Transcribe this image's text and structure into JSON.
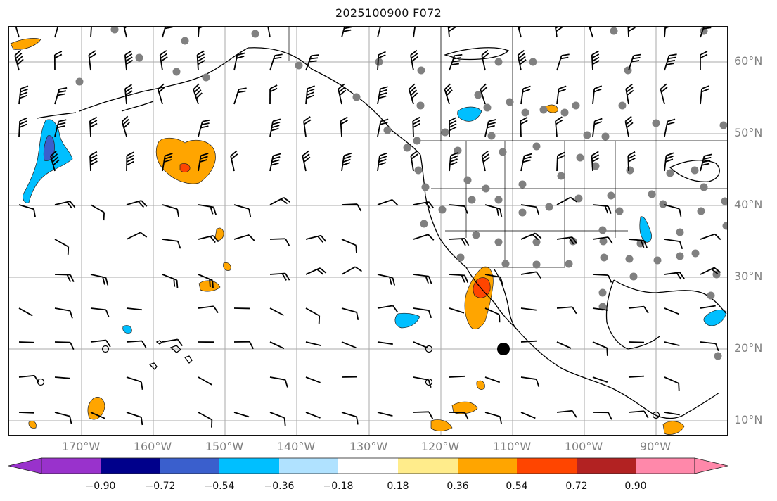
{
  "title": "2025100900 F072",
  "map": {
    "lat_labels": [
      "60°N",
      "50°N",
      "40°N",
      "30°N",
      "20°N",
      "10°N"
    ],
    "lon_labels": [
      "170°W",
      "160°W",
      "150°W",
      "140°W",
      "130°W",
      "120°W",
      "110°W",
      "100°W",
      "90°W"
    ],
    "gridline_color": "#aaaaaa",
    "station_marker_color": "#808080",
    "wind_barb_color": "#000000"
  },
  "colorbar": {
    "tick_labels": [
      "−0.90",
      "−0.72",
      "−0.54",
      "−0.36",
      "−0.18",
      "0.18",
      "0.36",
      "0.54",
      "0.72",
      "0.90"
    ],
    "colors": [
      "#9932cc",
      "#00008b",
      "#3a5fcd",
      "#00bfff",
      "#b0e2ff",
      "#ffffff",
      "#ffec8b",
      "#ffa500",
      "#ff4500",
      "#b22222",
      "#ff88aa"
    ]
  }
}
